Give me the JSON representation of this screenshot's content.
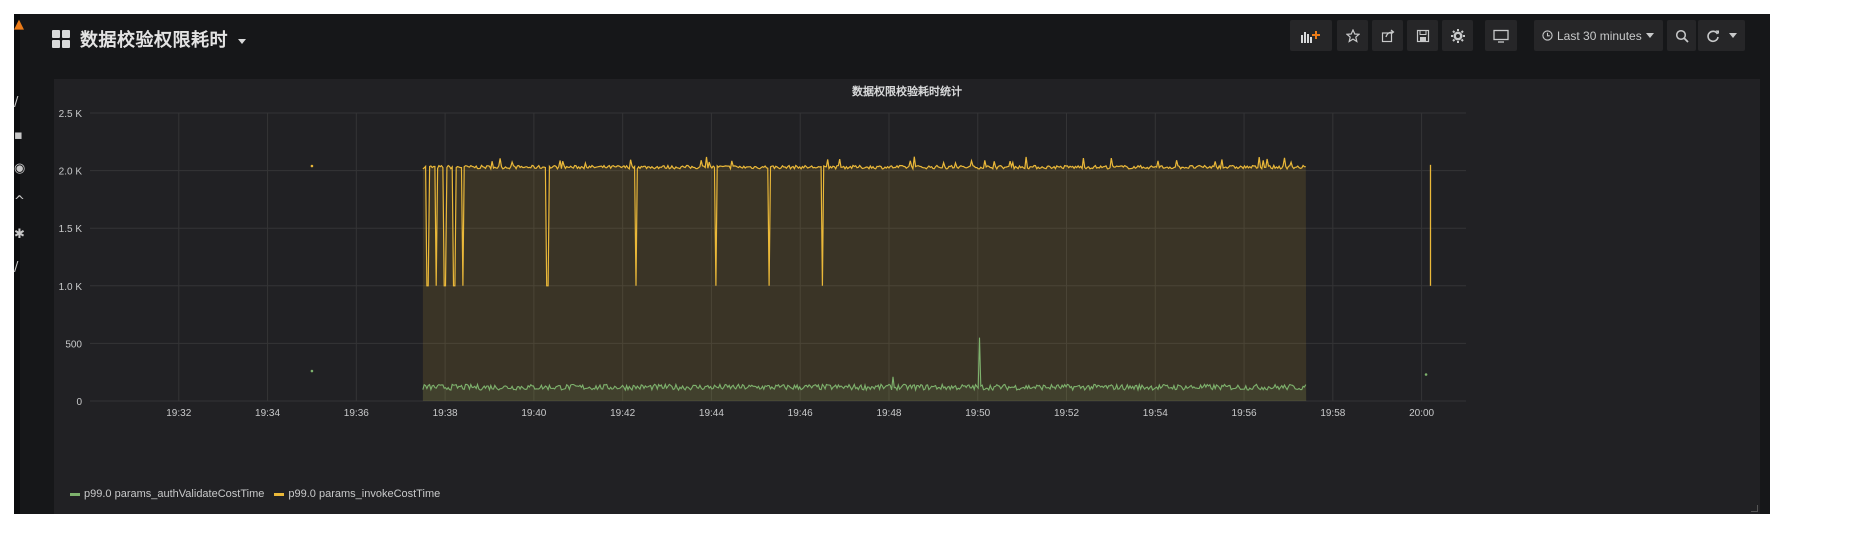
{
  "dashboard": {
    "title": "数据校验权限耗时"
  },
  "navbar": {
    "buttons": [
      {
        "name": "add-panel-icon"
      },
      {
        "name": "star-icon"
      },
      {
        "name": "share-icon"
      },
      {
        "name": "save-icon"
      },
      {
        "name": "settings-gear-icon"
      },
      {
        "name": "tv-mode-icon"
      }
    ],
    "time_range": "Last 30 minutes",
    "zoom_out": "zoom-out-icon",
    "refresh": "refresh-icon"
  },
  "panel": {
    "title": "数据权限校验耗时统计"
  },
  "chart_data": {
    "type": "line",
    "x_unit": "time",
    "xlim": [
      "19:30",
      "20:01"
    ],
    "ylim": [
      0,
      2500
    ],
    "yticks": [
      "0",
      "500",
      "1.0 K",
      "1.5 K",
      "2.0 K",
      "2.5 K"
    ],
    "xticks": [
      "19:32",
      "19:34",
      "19:36",
      "19:38",
      "19:40",
      "19:42",
      "19:44",
      "19:46",
      "19:48",
      "19:50",
      "19:52",
      "19:54",
      "19:56",
      "19:58",
      "20:00"
    ],
    "grid": true,
    "legend_position": "bottom-left",
    "series": [
      {
        "name": "p99.0 params_authValidateCostTime",
        "color": "#7eb26d",
        "approx": {
          "start": "19:37.5",
          "end": "19:57.4",
          "baseline": 120,
          "noise": 25,
          "spikes": [
            {
              "t": "19:50.05",
              "value": 550
            },
            {
              "t": "19:48.1",
              "value": 210
            }
          ],
          "isolated_points": [
            {
              "t": "19:35.0",
              "value": 260
            },
            {
              "t": "20:00.1",
              "value": 230
            }
          ]
        }
      },
      {
        "name": "p99.0 params_invokeCostTime",
        "color": "#eab839",
        "approx": {
          "start": "19:37.5",
          "end": "19:57.4",
          "baseline": 2030,
          "noise": 15,
          "dips_to": 1000,
          "dip_times": [
            "19:37.6",
            "19:37.8",
            "19:38.0",
            "19:38.2",
            "19:38.4",
            "19:40.3",
            "19:42.3",
            "19:44.1",
            "19:45.3",
            "19:46.5"
          ],
          "isolated_points": [
            {
              "t": "19:35.0",
              "value": 2040
            }
          ],
          "tail_segment": {
            "t": "20:00.2",
            "from": 1000,
            "to": 2050
          }
        }
      }
    ]
  },
  "legend": {
    "items": [
      {
        "label": "p99.0 params_authValidateCostTime",
        "color": "#7eb26d"
      },
      {
        "label": "p99.0 params_invokeCostTime",
        "color": "#eab839"
      }
    ]
  }
}
